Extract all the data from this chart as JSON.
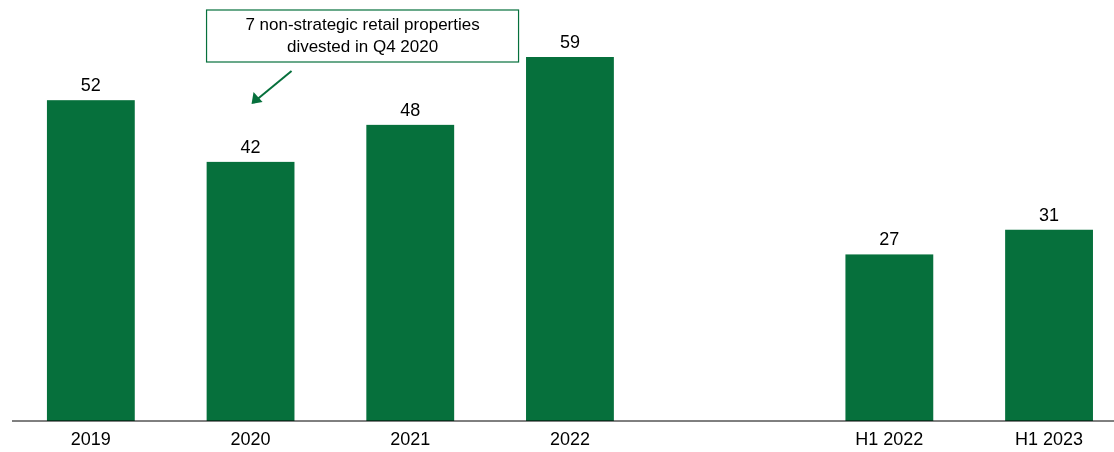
{
  "chart_data": {
    "type": "bar",
    "categories": [
      "2019",
      "2020",
      "2021",
      "2022",
      null,
      "H1 2022",
      "H1 2023"
    ],
    "values": [
      52,
      42,
      48,
      59,
      null,
      27,
      31
    ],
    "color": "#06703c",
    "data_labels": true,
    "annotations": [
      "7 non-strategic retail properties\ndivested in Q4 2020"
    ]
  }
}
